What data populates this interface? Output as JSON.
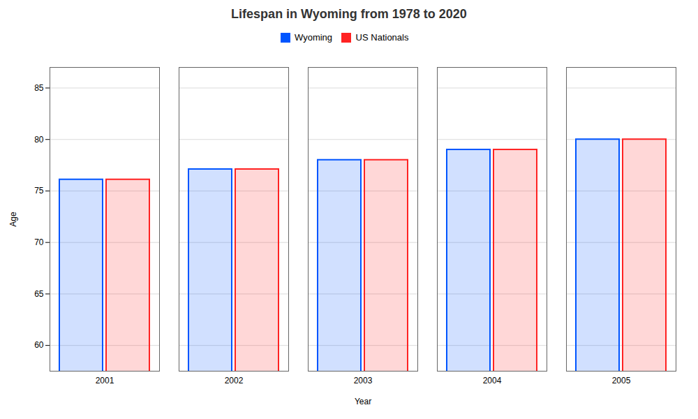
{
  "chart_data": {
    "type": "bar",
    "title": "Lifespan in Wyoming from 1978 to 2020",
    "xlabel": "Year",
    "ylabel": "Age",
    "categories": [
      "2001",
      "2002",
      "2003",
      "2004",
      "2005"
    ],
    "series": [
      {
        "name": "Wyoming",
        "color": "#0055ff",
        "values": [
          76.1,
          77.1,
          78.0,
          79.0,
          80.0
        ]
      },
      {
        "name": "US Nationals",
        "color": "#ff2222",
        "values": [
          76.1,
          77.1,
          78.0,
          79.0,
          80.0
        ]
      }
    ],
    "ylim": [
      57.5,
      87
    ],
    "yticks": [
      60,
      65,
      70,
      75,
      80,
      85
    ],
    "grid": true,
    "legend": "top"
  }
}
